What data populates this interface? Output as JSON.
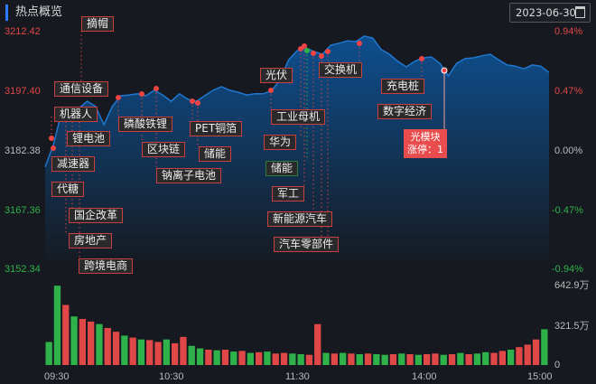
{
  "header": {
    "title": "热点概览",
    "date": "2023-06-30",
    "calendar_icon": "calendar-icon"
  },
  "axes": {
    "price_ticks": [
      "3212.42",
      "3197.40",
      "3182.38",
      "3167.36",
      "3152.34"
    ],
    "pct_ticks": [
      "0.94%",
      "0.47%",
      "0.00%",
      "-0.47%",
      "-0.94%"
    ],
    "volume_ticks": [
      "642.9万",
      "321.5万",
      "0"
    ],
    "time_ticks": [
      "09:30",
      "10:30",
      "11:30",
      "14:00",
      "15:00"
    ]
  },
  "labels": [
    "摘帽",
    "通信设备",
    "机器人",
    "锂电池",
    "减速器",
    "代糖",
    "国企改革",
    "房地产",
    "跨境电商",
    "磷酸铁锂",
    "区块链",
    "钠离子电池",
    "PET铜箔",
    "储能",
    "光伏",
    "工业母机",
    "华为",
    "储能",
    "军工",
    "新能源汽车",
    "汽车零部件",
    "交换机",
    "充电桩",
    "数字经济"
  ],
  "highlight": {
    "name": "光模块",
    "line2": "涨停：1"
  },
  "colors": {
    "up": "#e04848",
    "down": "#2fb24a",
    "line": "#1f77d0",
    "accent": "#2f7bff"
  },
  "chart_data": {
    "type": "area",
    "ylim": [
      3152.34,
      3212.42
    ],
    "prev_close": 3182.38,
    "price": [
      3178.2,
      3183.9,
      3192.5,
      3193.0,
      3193.0,
      3194.8,
      3193.5,
      3188.9,
      3193.5,
      3196.2,
      3196.4,
      3196.7,
      3196.2,
      3197.6,
      3196.4,
      3194.8,
      3196.7,
      3195.3,
      3194.8,
      3196.2,
      3197.6,
      3198.5,
      3197.6,
      3197.1,
      3196.4,
      3196.7,
      3196.7,
      3197.6,
      3200.3,
      3205.3,
      3207.6,
      3208.3,
      3207.4,
      3206.7,
      3209.0,
      3209.5,
      3210.1,
      3209.9,
      3211.3,
      3210.8,
      3207.9,
      3206.7,
      3204.9,
      3203.5,
      3204.9,
      3205.8,
      3206.0,
      3204.4,
      3201.2,
      3204.4,
      3205.6,
      3205.8,
      3206.3,
      3206.7,
      3205.3,
      3204.0,
      3203.7,
      3203.0,
      3204.0,
      3203.7,
      3202.1
    ],
    "volume_max": 642.9,
    "volume": [
      180,
      620,
      470,
      380,
      360,
      340,
      320,
      290,
      260,
      230,
      215,
      200,
      195,
      180,
      200,
      170,
      220,
      150,
      130,
      120,
      115,
      120,
      105,
      110,
      95,
      100,
      105,
      90,
      95,
      90,
      85,
      80,
      320,
      95,
      90,
      95,
      90,
      85,
      90,
      85,
      80,
      85,
      90,
      85,
      80,
      85,
      90,
      80,
      85,
      95,
      85,
      90,
      100,
      95,
      110,
      120,
      140,
      160,
      200,
      280
    ],
    "volume_dir": [
      "d",
      "d",
      "u",
      "d",
      "u",
      "u",
      "d",
      "u",
      "u",
      "d",
      "u",
      "d",
      "u",
      "u",
      "d",
      "u",
      "u",
      "d",
      "d",
      "u",
      "d",
      "u",
      "d",
      "u",
      "d",
      "u",
      "d",
      "u",
      "u",
      "d",
      "d",
      "u",
      "u",
      "d",
      "u",
      "d",
      "u",
      "d",
      "u",
      "d",
      "d",
      "u",
      "d",
      "u",
      "d",
      "u",
      "u",
      "d",
      "u",
      "d",
      "u",
      "d",
      "d",
      "u",
      "u",
      "d",
      "u",
      "u",
      "u",
      "d"
    ]
  }
}
